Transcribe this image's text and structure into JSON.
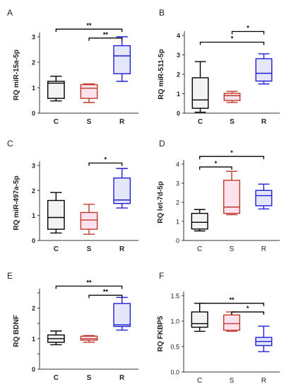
{
  "chart_data": [
    {
      "panel": "A",
      "type": "box",
      "ylabel": "RQ miR-15a-5p",
      "ylim": [
        0,
        3
      ],
      "yticks": [
        0,
        1,
        2,
        3
      ],
      "categories": [
        "C",
        "S",
        "R"
      ],
      "boxes": [
        {
          "min": 0.48,
          "q1": 0.58,
          "median": 1.18,
          "q3": 1.25,
          "max": 1.45,
          "color": "#000000"
        },
        {
          "min": 0.42,
          "q1": 0.58,
          "median": 0.98,
          "q3": 1.12,
          "max": 1.15,
          "color": "#c0392b"
        },
        {
          "min": 1.25,
          "q1": 1.55,
          "median": 2.25,
          "q3": 2.65,
          "max": 3.0,
          "color": "#1f1fd6"
        }
      ],
      "significance": [
        {
          "from": "C",
          "to": "R",
          "label": "**",
          "level": 3.3
        },
        {
          "from": "S",
          "to": "R",
          "label": "**",
          "level": 2.95
        }
      ],
      "bold_ticks": true
    },
    {
      "panel": "B",
      "type": "box",
      "ylabel": "RQ miR-511-5p",
      "ylim": [
        0,
        4
      ],
      "yticks": [
        0,
        1,
        2,
        3,
        4
      ],
      "categories": [
        "C",
        "S",
        "R"
      ],
      "boxes": [
        {
          "min": 0.05,
          "q1": 0.25,
          "median": 0.68,
          "q3": 1.82,
          "max": 2.65,
          "color": "#000000"
        },
        {
          "min": 0.55,
          "q1": 0.65,
          "median": 0.9,
          "q3": 1.02,
          "max": 1.12,
          "color": "#c0392b"
        },
        {
          "min": 1.5,
          "q1": 1.65,
          "median": 2.05,
          "q3": 2.8,
          "max": 3.05,
          "color": "#1f1fd6"
        }
      ],
      "significance": [
        {
          "from": "C",
          "to": "R",
          "label": "*",
          "level": 3.65
        },
        {
          "from": "S",
          "to": "R",
          "label": "*",
          "level": 4.2
        }
      ],
      "bold_ticks": true
    },
    {
      "panel": "C",
      "type": "box",
      "ylabel": "RQ miR-497a-5p",
      "ylim": [
        0,
        3
      ],
      "yticks": [
        0,
        1,
        2,
        3
      ],
      "categories": [
        "C",
        "S",
        "R"
      ],
      "boxes": [
        {
          "min": 0.3,
          "q1": 0.45,
          "median": 0.92,
          "q3": 1.6,
          "max": 1.92,
          "color": "#000000"
        },
        {
          "min": 0.25,
          "q1": 0.45,
          "median": 0.82,
          "q3": 1.12,
          "max": 1.45,
          "color": "#c0392b"
        },
        {
          "min": 1.3,
          "q1": 1.48,
          "median": 1.62,
          "q3": 2.5,
          "max": 2.88,
          "color": "#1f1fd6"
        }
      ],
      "significance": [
        {
          "from": "S",
          "to": "R",
          "label": "*",
          "level": 3.1
        }
      ],
      "bold_ticks": true
    },
    {
      "panel": "D",
      "type": "box",
      "ylabel": "RQ let-7d-5p",
      "ylim": [
        0,
        4
      ],
      "yticks": [
        0,
        1,
        2,
        3,
        4
      ],
      "categories": [
        "C",
        "S",
        "R"
      ],
      "boxes": [
        {
          "min": 0.5,
          "q1": 0.6,
          "median": 0.95,
          "q3": 1.42,
          "max": 1.62,
          "color": "#000000"
        },
        {
          "min": 1.35,
          "q1": 1.42,
          "median": 1.75,
          "q3": 3.15,
          "max": 3.62,
          "color": "#c0392b"
        },
        {
          "min": 1.65,
          "q1": 1.82,
          "median": 2.35,
          "q3": 2.62,
          "max": 2.95,
          "color": "#1f1fd6"
        }
      ],
      "significance": [
        {
          "from": "C",
          "to": "S",
          "label": "*",
          "level": 3.85
        },
        {
          "from": "C",
          "to": "R",
          "label": "*",
          "level": 4.4
        }
      ],
      "bold_ticks": false
    },
    {
      "panel": "E",
      "type": "box",
      "ylabel": "RQ BDNF",
      "ylim": [
        0,
        2.5
      ],
      "yticks": [
        0,
        0.5,
        1,
        1.5,
        2,
        2.5
      ],
      "ytick_labels": [
        "0",
        "",
        "1",
        "",
        "2",
        ""
      ],
      "categories": [
        "C",
        "S",
        "R"
      ],
      "boxes": [
        {
          "min": 0.8,
          "q1": 0.88,
          "median": 1.0,
          "q3": 1.12,
          "max": 1.25,
          "color": "#000000"
        },
        {
          "min": 0.88,
          "q1": 0.95,
          "median": 1.0,
          "q3": 1.08,
          "max": 1.1,
          "color": "#c0392b"
        },
        {
          "min": 1.28,
          "q1": 1.4,
          "median": 1.45,
          "q3": 2.15,
          "max": 2.35,
          "color": "#1f1fd6"
        }
      ],
      "significance": [
        {
          "from": "C",
          "to": "R",
          "label": "**",
          "level": 2.72
        },
        {
          "from": "S",
          "to": "R",
          "label": "**",
          "level": 2.42
        }
      ],
      "bold_ticks": true
    },
    {
      "panel": "F",
      "type": "box",
      "ylabel": "RQ FKBP5",
      "ylim": [
        0,
        1.5
      ],
      "yticks": [
        0,
        0.5,
        1,
        1.5
      ],
      "ytick_labels": [
        "0.0",
        "0.5",
        "1.0",
        "1.5"
      ],
      "categories": [
        "C",
        "S",
        "R"
      ],
      "boxes": [
        {
          "min": 0.8,
          "q1": 0.88,
          "median": 0.95,
          "q3": 1.18,
          "max": 1.35,
          "color": "#000000"
        },
        {
          "min": 0.8,
          "q1": 0.82,
          "median": 0.95,
          "q3": 1.12,
          "max": 1.18,
          "color": "#c0392b"
        },
        {
          "min": 0.4,
          "q1": 0.52,
          "median": 0.6,
          "q3": 0.68,
          "max": 0.9,
          "color": "#1f1fd6"
        }
      ],
      "significance": [
        {
          "from": "C",
          "to": "R",
          "label": "**",
          "level": 1.35
        },
        {
          "from": "S",
          "to": "R",
          "label": "*",
          "level": 1.18
        }
      ],
      "bold_ticks": false
    }
  ]
}
